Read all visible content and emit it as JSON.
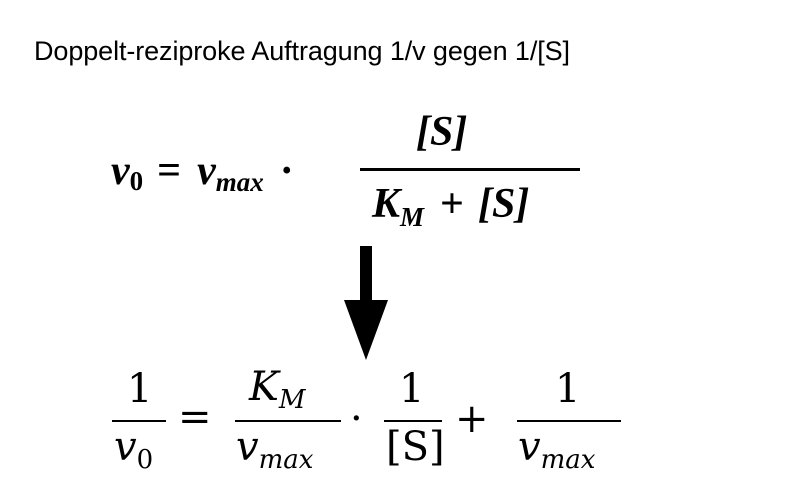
{
  "title": "Doppelt-reziproke Auftragung 1/v gegen 1/[S]",
  "formula1": {
    "lhs_var": "v",
    "lhs_sub": "0",
    "equals": "=",
    "rhs_var": "v",
    "rhs_sub": "max",
    "dot": "·",
    "numerator": "[S]",
    "den_K": "K",
    "den_K_sub": "M",
    "den_plus": "+",
    "den_S": "[S]"
  },
  "arrow": {
    "icon": "down-arrow-icon"
  },
  "formula2": {
    "lhs_num": "1",
    "lhs_den_var": "v",
    "lhs_den_sub": "0",
    "equals": "=",
    "t1_num_var": "K",
    "t1_num_sub": "M",
    "t1_den_var": "v",
    "t1_den_sub": "max",
    "dot": "·",
    "t2_num": "1",
    "t2_den": "[S]",
    "plus": "+",
    "t3_num": "1",
    "t3_den_var": "v",
    "t3_den_sub": "max"
  }
}
